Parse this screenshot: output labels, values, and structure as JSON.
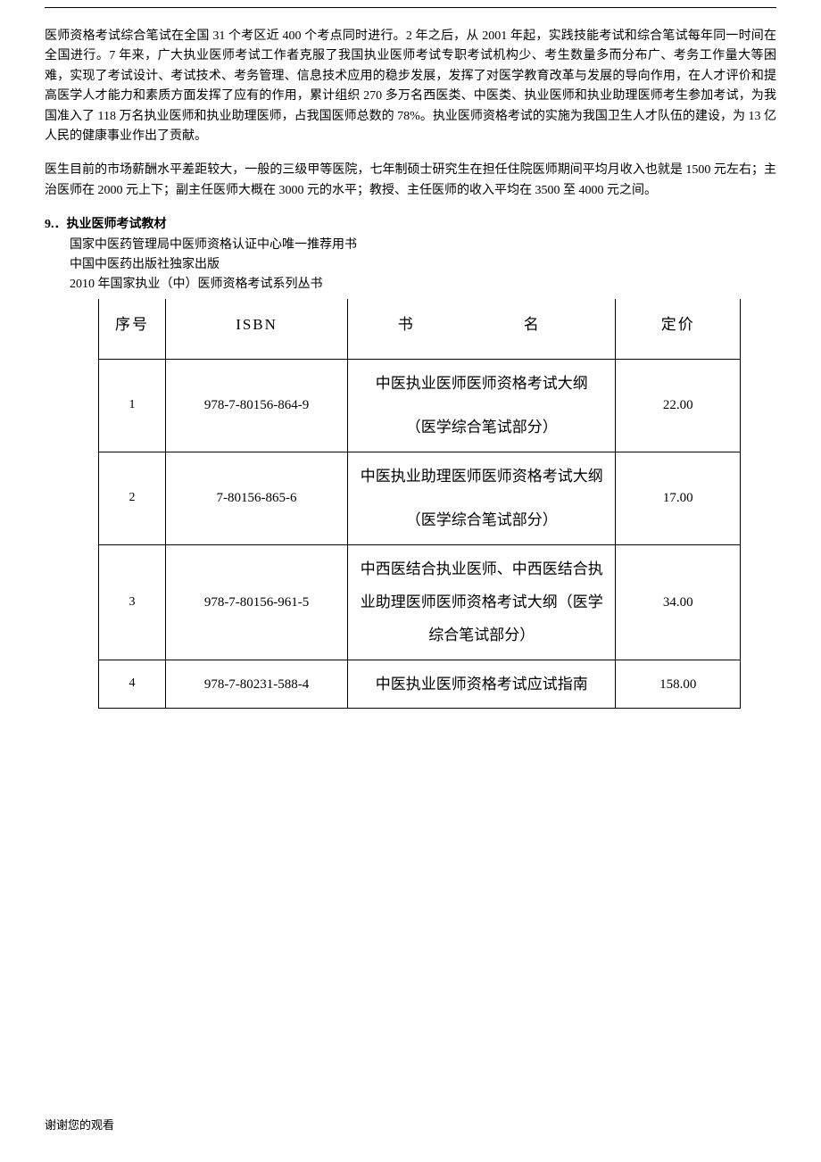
{
  "header_right": "",
  "para1": "医师资格考试综合笔试在全国 31 个考区近 400 个考点同时进行。2 年之后，从 2001 年起，实践技能考试和综合笔试每年同一时间在全国进行。7 年来，广大执业医师考试工作者克服了我国执业医师考试专职考试机构少、考生数量多而分布广、考务工作量大等困难，实现了考试设计、考试技术、考务管理、信息技术应用的稳步发展，发挥了对医学教育改革与发展的导向作用，在人才评价和提高医学人才能力和素质方面发挥了应有的作用，累计组织 270 多万名西医类、中医类、执业医师和执业助理医师考生参加考试，为我国准入了 118 万名执业医师和执业助理医师，占我国医师总数的 78%。执业医师资格考试的实施为我国卫生人才队伍的建设，为 13 亿人民的健康事业作出了贡献。",
  "para2": "医生目前的市场薪酬水平差距较大，一般的三级甲等医院，七年制硕士研究生在担任住院医师期间平均月收入也就是 1500 元左右；主治医师在 2000 元上下；副主任医师大概在 3000 元的水平；教授、主任医师的收入平均在 3500 至 4000 元之间。",
  "section_title": "9.．执业医师考试教材",
  "sub1": "国家中医药管理局中医师资格认证中心唯一推荐用书",
  "sub2": "中国中医药出版社独家出版",
  "sub3": "2010 年国家执业（中）医师资格考试系列丛书",
  "table": {
    "headers": {
      "seq": "序号",
      "isbn": "ISBN",
      "name": "书　　名",
      "price": "定价"
    },
    "rows": [
      {
        "seq": "1",
        "isbn": "978-7-80156-864-9",
        "name_main": "中医执业医师医师资格考试大纲",
        "name_sub": "（医学综合笔试部分）",
        "price": "22.00"
      },
      {
        "seq": "2",
        "isbn": "7-80156-865-6",
        "name_main": "中医执业助理医师医师资格考试大纲",
        "name_sub": "（医学综合笔试部分）",
        "price": "17.00"
      },
      {
        "seq": "3",
        "isbn": "978-7-80156-961-5",
        "name_main": "中西医结合执业医师、中西医结合执业助理医师医师资格考试大纲（医学综合笔试部分）",
        "name_sub": "",
        "price": "34.00"
      },
      {
        "seq": "4",
        "isbn": "978-7-80231-588-4",
        "name_main": "中医执业医师资格考试应试指南",
        "name_sub": "",
        "price": "158.00"
      }
    ]
  },
  "footer": "谢谢您的观看"
}
